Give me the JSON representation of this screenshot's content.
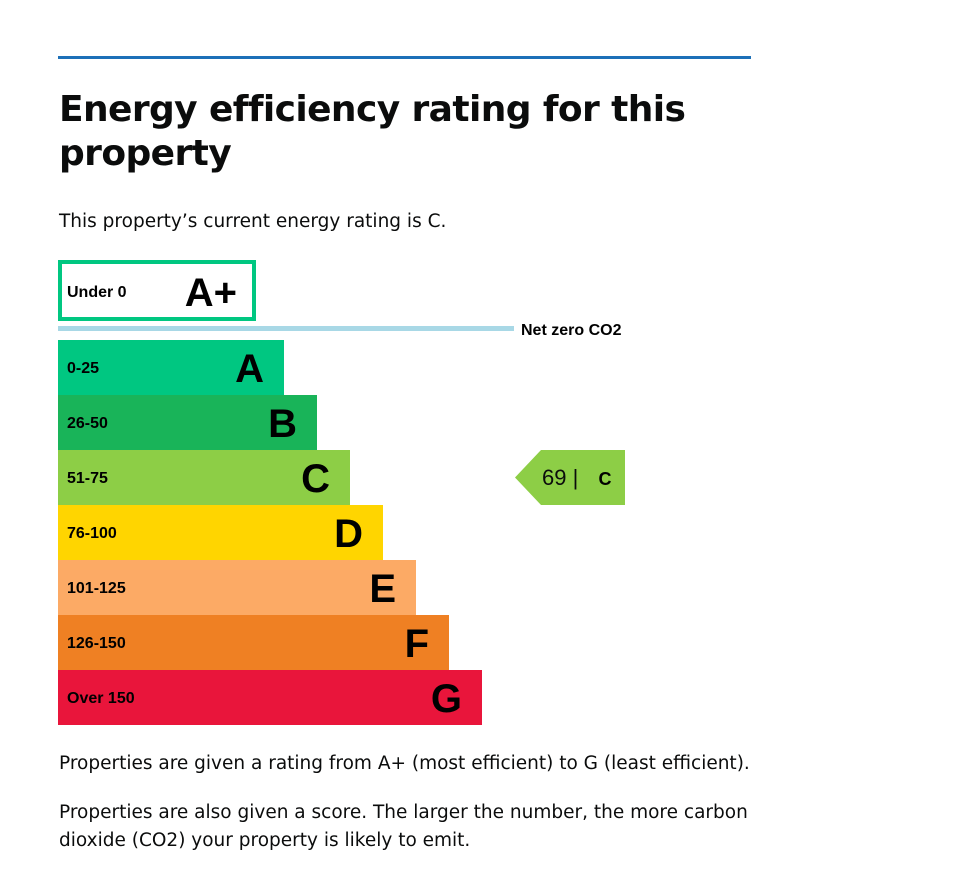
{
  "heading": "Energy efficiency rating for this property",
  "intro": "This property’s current energy rating is C.",
  "chart_data": {
    "type": "bar",
    "title": "",
    "bands": [
      {
        "letter": "A+",
        "range": "Under 0",
        "color": "#ffffff",
        "border_color": "#00c781",
        "outlined": true
      },
      {
        "letter": "A",
        "range": "0-25",
        "color": "#00c781"
      },
      {
        "letter": "B",
        "range": "26-50",
        "color": "#19b459"
      },
      {
        "letter": "C",
        "range": "51-75",
        "color": "#8dce46"
      },
      {
        "letter": "D",
        "range": "76-100",
        "color": "#ffd500"
      },
      {
        "letter": "E",
        "range": "101-125",
        "color": "#fcaa65"
      },
      {
        "letter": "F",
        "range": "126-150",
        "color": "#ef8023"
      },
      {
        "letter": "G",
        "range": "Over 150",
        "color": "#e9153b"
      }
    ],
    "net_zero_label": "Net zero CO2",
    "net_zero_color": "#a8d8e6",
    "current": {
      "score": "69 |",
      "band": "C",
      "color": "#8dce46"
    }
  },
  "paragraphs": [
    "Properties are given a rating from A+ (most efficient) to G (least efficient).",
    "Properties are also given a score. The larger the number, the more carbon dioxide (CO2) your property is likely to emit."
  ],
  "colors": {
    "rule": "#1d70b8",
    "text": "#0b0c0c"
  }
}
